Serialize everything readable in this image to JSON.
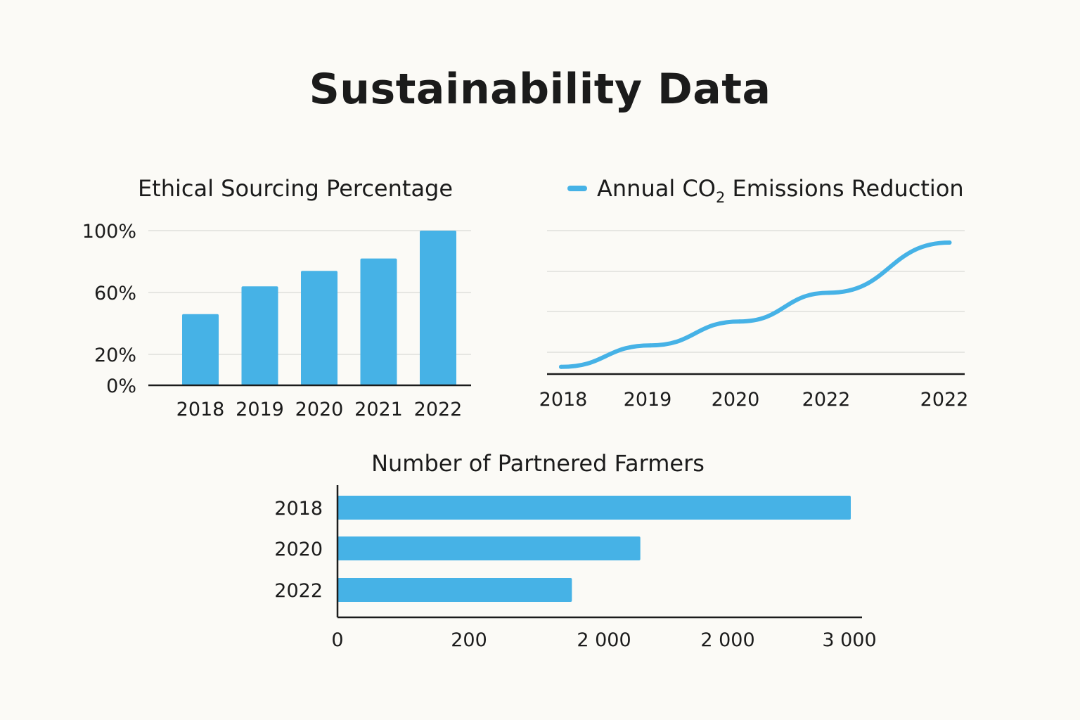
{
  "page": {
    "title": "Sustainability Data"
  },
  "colors": {
    "accent": "#46b2e6",
    "text": "#1b1b1b",
    "background": "#fbfaf6",
    "grid": "#d9d9d6"
  },
  "chart_data": [
    {
      "type": "bar",
      "title": "Ethical Sourcing Percentage",
      "categories": [
        "2018",
        "2019",
        "2020",
        "2021",
        "2022"
      ],
      "values": [
        46,
        64,
        74,
        82,
        100
      ],
      "ylim": [
        0,
        100
      ],
      "y_ticks": [
        0,
        20,
        60,
        100
      ],
      "y_tick_labels": [
        "0%",
        "20%",
        "60%",
        "100%"
      ],
      "xlabel": "",
      "ylabel": "",
      "grid": true
    },
    {
      "type": "line",
      "title": "Annual CO",
      "title_subscript": "2",
      "title_rest": " Emissions Reduction",
      "legend": "top",
      "x": [
        0,
        1,
        2,
        3,
        4.35
      ],
      "x_tick_labels": [
        "2018",
        "2019",
        "2020",
        "2022",
        "2022"
      ],
      "values": [
        6,
        24,
        44,
        68,
        110
      ],
      "ylim": [
        0,
        120
      ],
      "grid": true
    },
    {
      "type": "bar",
      "orientation": "horizontal",
      "title": "Number of Partnered Farmers",
      "categories": [
        "2018",
        "2020",
        "2022"
      ],
      "values": [
        3000,
        1770,
        1370
      ],
      "x_tick_labels": [
        "0",
        "200",
        "2 000",
        "2 000",
        "3 000"
      ],
      "xlim": [
        0,
        3000
      ],
      "grid": false
    }
  ]
}
